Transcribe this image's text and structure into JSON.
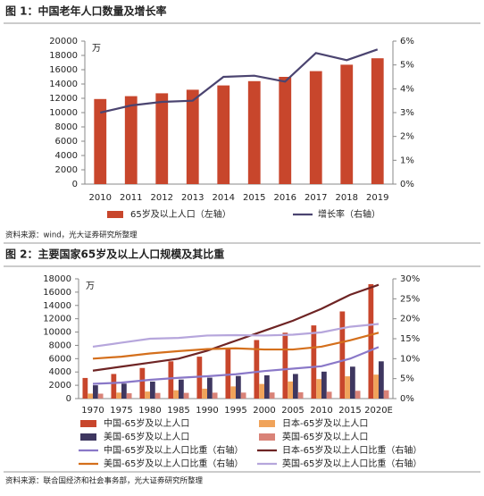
{
  "chart_data": [
    {
      "type": "bar-line",
      "title": "图 1：中国老年人口数量及增长率",
      "y_label": "万",
      "categories": [
        "2010",
        "2011",
        "2012",
        "2013",
        "2014",
        "2015",
        "2016",
        "2017",
        "2018",
        "2019"
      ],
      "series": [
        {
          "name": "65岁及以上人口（左轴）",
          "type": "bar",
          "color": "#c8462c",
          "values": [
            11900,
            12300,
            12700,
            13200,
            13800,
            14400,
            15000,
            15800,
            16700,
            17600
          ]
        },
        {
          "name": "增长率（右轴）",
          "type": "line",
          "axis": "y2",
          "color": "#4b4470",
          "values": [
            3.0,
            3.3,
            3.45,
            3.5,
            4.5,
            4.55,
            4.3,
            5.5,
            5.2,
            5.65
          ]
        }
      ],
      "ylim": [
        0,
        20000
      ],
      "yticks": [
        0,
        2000,
        4000,
        6000,
        8000,
        10000,
        12000,
        14000,
        16000,
        18000,
        20000
      ],
      "y2lim": [
        0,
        6
      ],
      "y2ticks": [
        {
          "value": 0,
          "label": "0%"
        },
        {
          "value": 1,
          "label": "1%"
        },
        {
          "value": 2,
          "label": "2%"
        },
        {
          "value": 3,
          "label": "3%"
        },
        {
          "value": 4,
          "label": "4%"
        },
        {
          "value": 5,
          "label": "5%"
        },
        {
          "value": 6,
          "label": "6%"
        }
      ],
      "source": "资料来源：wind，光大证券研究所整理"
    },
    {
      "type": "bar-line",
      "title": "图 2：主要国家65岁及以上人口规模及其比重",
      "y_label": "万",
      "categories": [
        "1970",
        "1975",
        "1980",
        "1985",
        "1990",
        "1995",
        "2000",
        "2005",
        "2010",
        "2015",
        "2020E"
      ],
      "series": [
        {
          "name": "中国-65岁及以上人口",
          "type": "bar",
          "color": "#c8462c",
          "values": [
            3100,
            3700,
            4600,
            5600,
            6300,
            7400,
            8800,
            9900,
            11000,
            13100,
            17200
          ]
        },
        {
          "name": "日本-65岁及以上人口",
          "type": "bar",
          "color": "#f0a35a",
          "values": [
            750,
            900,
            1060,
            1250,
            1490,
            1830,
            2200,
            2570,
            2930,
            3350,
            3600
          ]
        },
        {
          "name": "美国-65岁及以上人口",
          "type": "bar",
          "color": "#3e3760",
          "values": [
            2000,
            2250,
            2560,
            2860,
            3150,
            3400,
            3500,
            3700,
            4050,
            4800,
            5600
          ]
        },
        {
          "name": "英国-65岁及以上人口",
          "type": "bar",
          "color": "#d98378",
          "values": [
            740,
            800,
            850,
            860,
            890,
            900,
            920,
            950,
            1030,
            1170,
            1250
          ]
        },
        {
          "name": "中国-65岁及以上人口比重（右轴）",
          "type": "line",
          "axis": "y2",
          "color": "#8a78c8",
          "values": [
            3.7,
            4.0,
            4.7,
            5.2,
            5.6,
            6.1,
            6.9,
            7.5,
            8.1,
            10.0,
            12.9
          ]
        },
        {
          "name": "日本-65岁及以上人口比重（右轴）",
          "type": "line",
          "axis": "y2",
          "color": "#6e2424",
          "values": [
            7.0,
            8.0,
            9.0,
            10.0,
            12.0,
            14.5,
            17.0,
            19.5,
            22.5,
            26.0,
            28.5
          ]
        },
        {
          "name": "美国-65岁及以上人口比重（右轴）",
          "type": "line",
          "axis": "y2",
          "color": "#d46f1c",
          "values": [
            10.0,
            10.5,
            11.3,
            11.9,
            12.4,
            12.6,
            12.3,
            12.3,
            13.0,
            14.6,
            16.5
          ]
        },
        {
          "name": "英国-65岁及以上人口比重（右轴）",
          "type": "line",
          "axis": "y2",
          "color": "#b6a6dc",
          "values": [
            13.0,
            14.0,
            15.0,
            15.2,
            15.8,
            15.9,
            15.8,
            16.0,
            16.6,
            18.0,
            18.7
          ]
        }
      ],
      "ylim": [
        0,
        18000
      ],
      "yticks": [
        0,
        2000,
        4000,
        6000,
        8000,
        10000,
        12000,
        14000,
        16000,
        18000
      ],
      "y2lim": [
        0,
        30
      ],
      "y2ticks": [
        {
          "value": 0,
          "label": "0%"
        },
        {
          "value": 5,
          "label": "5%"
        },
        {
          "value": 10,
          "label": "10%"
        },
        {
          "value": 15,
          "label": "15%"
        },
        {
          "value": 20,
          "label": "20%"
        },
        {
          "value": 25,
          "label": "25%"
        },
        {
          "value": 30,
          "label": "30%"
        }
      ],
      "source": "资料来源：联合国经济和社会事务部，光大证券研究所整理"
    }
  ]
}
